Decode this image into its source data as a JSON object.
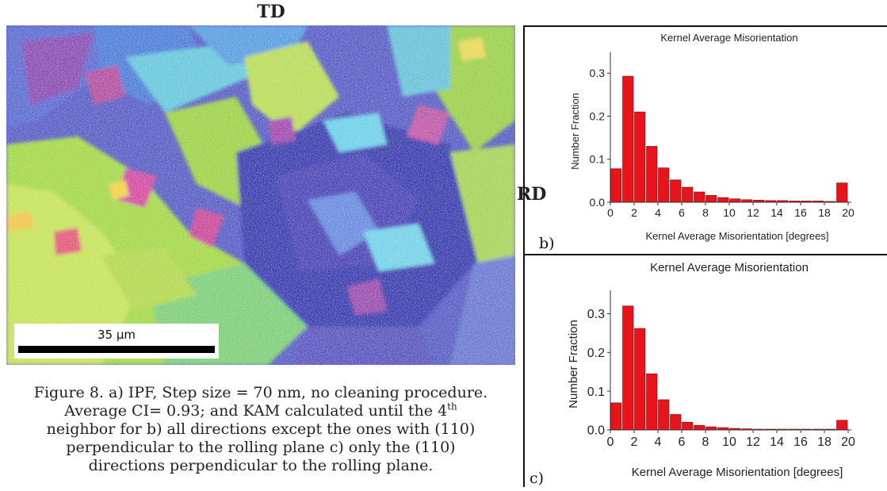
{
  "figure": {
    "td_label": "TD",
    "rd_label": "RD",
    "scale_bar": "35 μm",
    "caption": {
      "line1": "Figure 8. a) IPF, Step size = 70 nm, no cleaning procedure.",
      "line2_pre": "Average CI= 0.93; and KAM calculated until the 4",
      "line2_sup": "th",
      "line3": "neighbor for b) all directions except the ones with (110)",
      "line4": "perpendicular to the rolling plane c) only the (110)",
      "line5": "directions perpendicular to the rolling plane."
    },
    "panel_b_label": "b)",
    "panel_c_label": "c)"
  },
  "chart_data": [
    {
      "type": "bar",
      "panel": "b)",
      "title": "Kernel Average Misorientation",
      "xlabel": "Kernel Average Misorientation [degrees]",
      "ylabel": "Number Fraction",
      "x_ticks": [
        0,
        2,
        4,
        6,
        8,
        10,
        12,
        14,
        16,
        18,
        20
      ],
      "y_ticks": [
        "0.0",
        "0.1",
        "0.2",
        "0.3"
      ],
      "xlim": [
        0,
        20
      ],
      "ylim": [
        0,
        0.33
      ],
      "bar_color": "#e8141c",
      "bins": [
        0.5,
        1.5,
        2.5,
        3.5,
        4.5,
        5.5,
        6.5,
        7.5,
        8.5,
        9.5,
        10.5,
        11.5,
        12.5,
        13.5,
        14.5,
        15.5,
        16.5,
        17.5,
        18.5,
        19.5
      ],
      "values": [
        0.078,
        0.293,
        0.21,
        0.13,
        0.08,
        0.052,
        0.035,
        0.024,
        0.016,
        0.011,
        0.008,
        0.006,
        0.005,
        0.004,
        0.004,
        0.003,
        0.003,
        0.003,
        0.002,
        0.045
      ]
    },
    {
      "type": "bar",
      "panel": "c)",
      "title": "Kernel Average Misorientation",
      "xlabel": "Kernel Average Misorientation [degrees]",
      "ylabel": "Number Fraction",
      "x_ticks": [
        0,
        2,
        4,
        6,
        8,
        10,
        12,
        14,
        16,
        18,
        20
      ],
      "y_ticks": [
        "0.0",
        "0.1",
        "0.2",
        "0.3"
      ],
      "xlim": [
        0,
        20
      ],
      "ylim": [
        0,
        0.34
      ],
      "bar_color": "#e8141c",
      "bins": [
        0.5,
        1.5,
        2.5,
        3.5,
        4.5,
        5.5,
        6.5,
        7.5,
        8.5,
        9.5,
        10.5,
        11.5,
        12.5,
        13.5,
        14.5,
        15.5,
        16.5,
        17.5,
        18.5,
        19.5
      ],
      "values": [
        0.07,
        0.32,
        0.262,
        0.145,
        0.078,
        0.04,
        0.02,
        0.012,
        0.008,
        0.006,
        0.004,
        0.003,
        0.002,
        0.002,
        0.002,
        0.002,
        0.002,
        0.002,
        0.002,
        0.025
      ]
    }
  ]
}
